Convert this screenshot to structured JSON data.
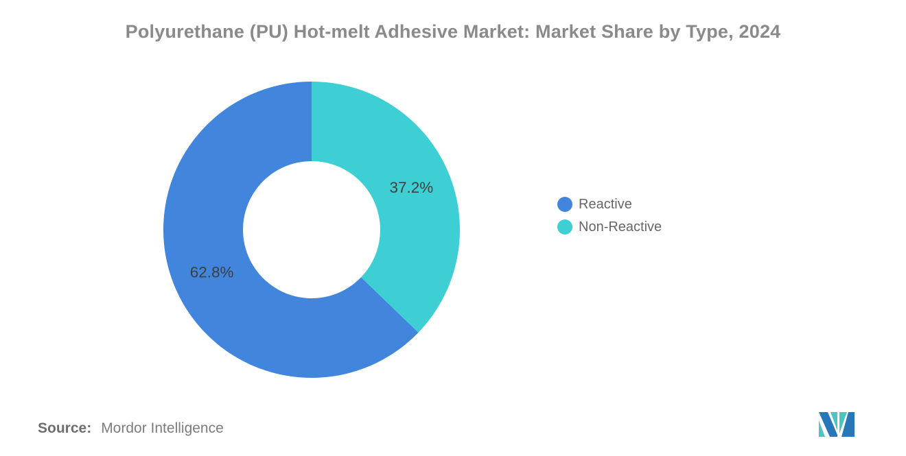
{
  "chart_data": {
    "type": "donut",
    "title": "Polyurethane (PU) Hot-melt Adhesive Market: Market Share by Type, 2024",
    "categories": [
      "Reactive",
      "Non-Reactive"
    ],
    "values": [
      62.8,
      37.2
    ],
    "data_labels": [
      "62.8%",
      "37.2%"
    ],
    "colors": [
      "#4285DC",
      "#3ECFD4"
    ],
    "start_angle": "top",
    "direction": "counterclockwise",
    "inner_radius_ratio": 0.463,
    "legend_position": "right",
    "grid": false
  },
  "footer": {
    "source_label": "Source:",
    "source_value": "Mordor Intelligence"
  },
  "logo": {
    "name": "Mordor Intelligence",
    "blue": "#2878B8",
    "teal": "#4DC4C0"
  },
  "styles": {
    "background": "#FFFFFF",
    "title_color": "#8A8A8A",
    "label_color": "#3F3F3F",
    "legend_text_color": "#666666",
    "source_text_color": "#6E6E6E"
  }
}
